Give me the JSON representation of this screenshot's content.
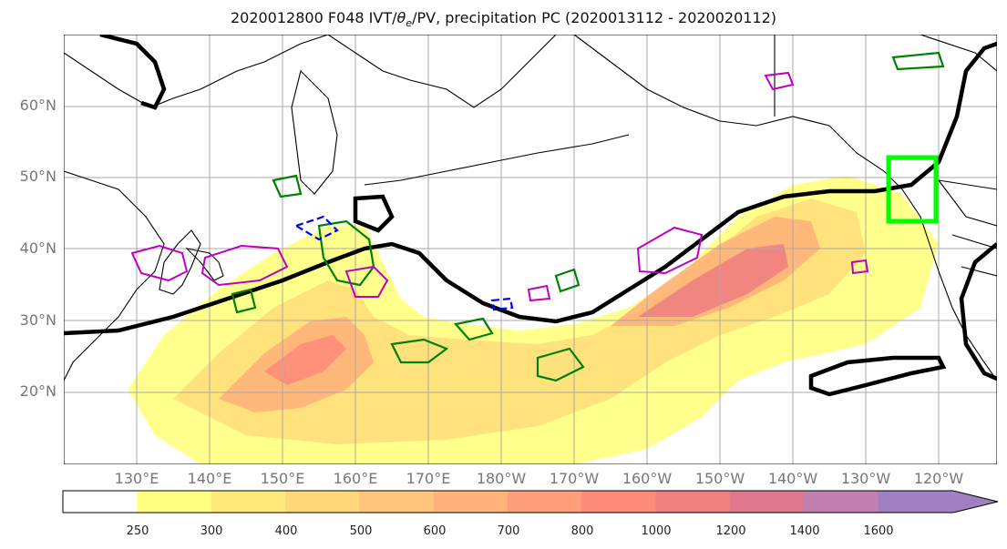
{
  "title": {
    "main": "2020012800 F048 IVT/",
    "theta": "θ",
    "theta_sub": "e",
    "rest": "/PV, precipitation PC (2020013112 - 2020020112)"
  },
  "lat_labels": [
    "60°N",
    "50°N",
    "40°N",
    "30°N",
    "20°N"
  ],
  "lon_labels": [
    "130°E",
    "140°E",
    "150°E",
    "160°E",
    "170°E",
    "180°W",
    "170°W",
    "160°W",
    "150°W",
    "140°W",
    "130°W",
    "120°W"
  ],
  "colorbar": {
    "ticks": [
      "250",
      "300",
      "400",
      "500",
      "600",
      "700",
      "800",
      "1000",
      "1200",
      "1400",
      "1600"
    ],
    "colors": [
      "#ffff80",
      "#ffeb7a",
      "#ffd87a",
      "#ffc57a",
      "#ffb27a",
      "#ff9f7a",
      "#ff8c7a",
      "#f08080",
      "#e07890",
      "#c080b0",
      "#a080c0"
    ],
    "under_color": "#ffffff"
  },
  "map": {
    "land_outline_color": "#000000",
    "theta_e_contour_color": "#000000",
    "pv_contour_color": "#008000",
    "pv_negative_color": "#0000ff",
    "precip_contour_color": "#c000c0",
    "box_color": "#00ff00"
  }
}
